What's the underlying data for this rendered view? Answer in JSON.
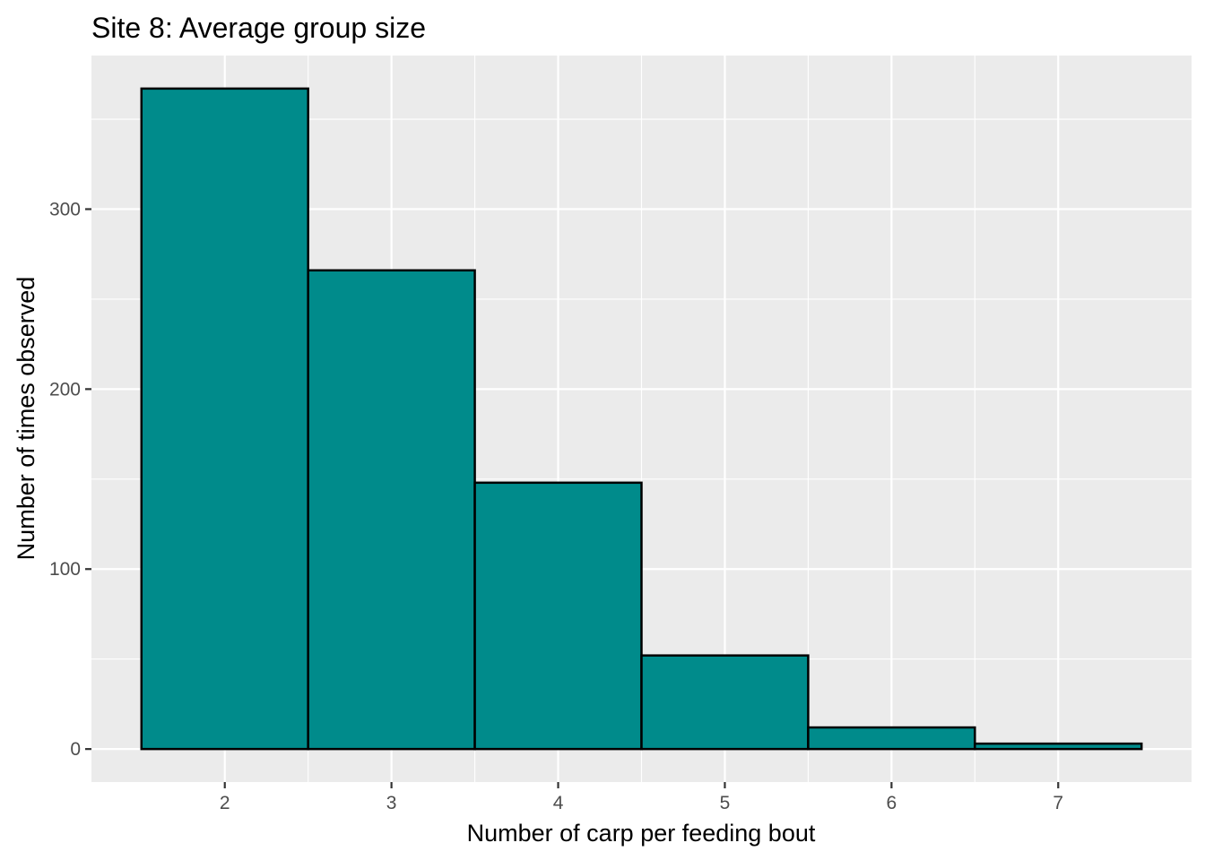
{
  "chart_data": {
    "type": "bar",
    "title": "Site 8: Average group size",
    "xlabel": "Number of carp per feeding bout",
    "ylabel": "Number of times observed",
    "categories": [
      2,
      3,
      4,
      5,
      6,
      7
    ],
    "values": [
      367,
      266,
      148,
      52,
      12,
      3
    ],
    "x_ticks": [
      "2",
      "3",
      "4",
      "5",
      "6",
      "7"
    ],
    "y_ticks": [
      0,
      100,
      200,
      300
    ],
    "xlim": [
      1.2,
      7.8
    ],
    "ylim": [
      -18.35,
      385.35
    ],
    "bar_fill": "#008B8B",
    "bar_outline": "#000000",
    "panel_background": "#EBEBEB",
    "grid_color": "#FFFFFF",
    "grid": true
  }
}
